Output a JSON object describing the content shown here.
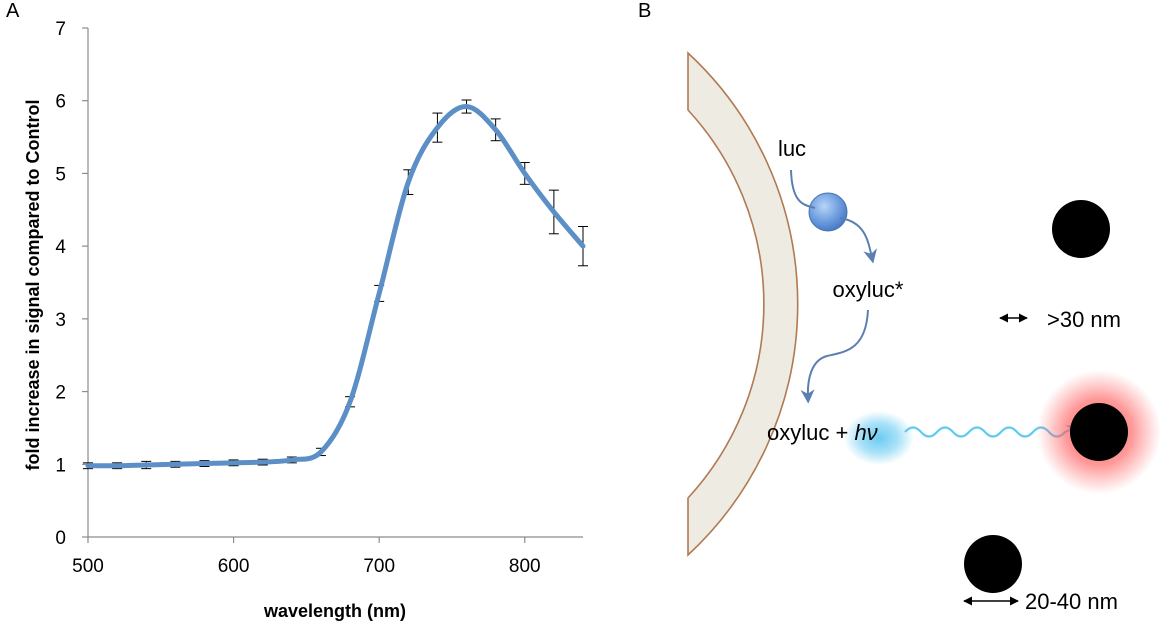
{
  "panel_a_label": "A",
  "panel_b_label": "B",
  "chart_data": {
    "type": "line",
    "xlabel": "wavelength (nm)",
    "ylabel": "fold increase in signal compared to Control",
    "xlim": [
      500,
      840
    ],
    "ylim": [
      0,
      7
    ],
    "x_ticks": [
      500,
      600,
      700,
      800
    ],
    "y_ticks": [
      0,
      1,
      2,
      3,
      4,
      5,
      6,
      7
    ],
    "grid": false,
    "series": [
      {
        "color": "#5b8fc6",
        "x": [
          500,
          520,
          540,
          560,
          580,
          600,
          620,
          640,
          660,
          680,
          700,
          720,
          740,
          760,
          780,
          800,
          820,
          840
        ],
        "y": [
          0.98,
          0.98,
          0.99,
          1.0,
          1.01,
          1.02,
          1.03,
          1.06,
          1.17,
          1.86,
          3.35,
          4.88,
          5.63,
          5.92,
          5.6,
          5.0,
          4.47,
          4.0
        ],
        "error": [
          0.04,
          0.04,
          0.05,
          0.04,
          0.04,
          0.04,
          0.04,
          0.04,
          0.05,
          0.07,
          0.11,
          0.17,
          0.2,
          0.09,
          0.15,
          0.15,
          0.3,
          0.27
        ]
      }
    ]
  },
  "diagram": {
    "luc_label": "luc",
    "excited_label": "oxyluc*",
    "product_label": "oxyluc + ",
    "photon_symbol": "hν",
    "shell_thickness_label": ">30 nm",
    "particle_size_label": "20-40 nm",
    "colors": {
      "shell_fill": "#eeebe3",
      "shell_edge": "#b07a52",
      "luc_sphere": "#5a8fd8",
      "photon_glow": "#62c9f2",
      "emission_glow": "#ff5555",
      "arrow": "#5b7fb0"
    }
  }
}
